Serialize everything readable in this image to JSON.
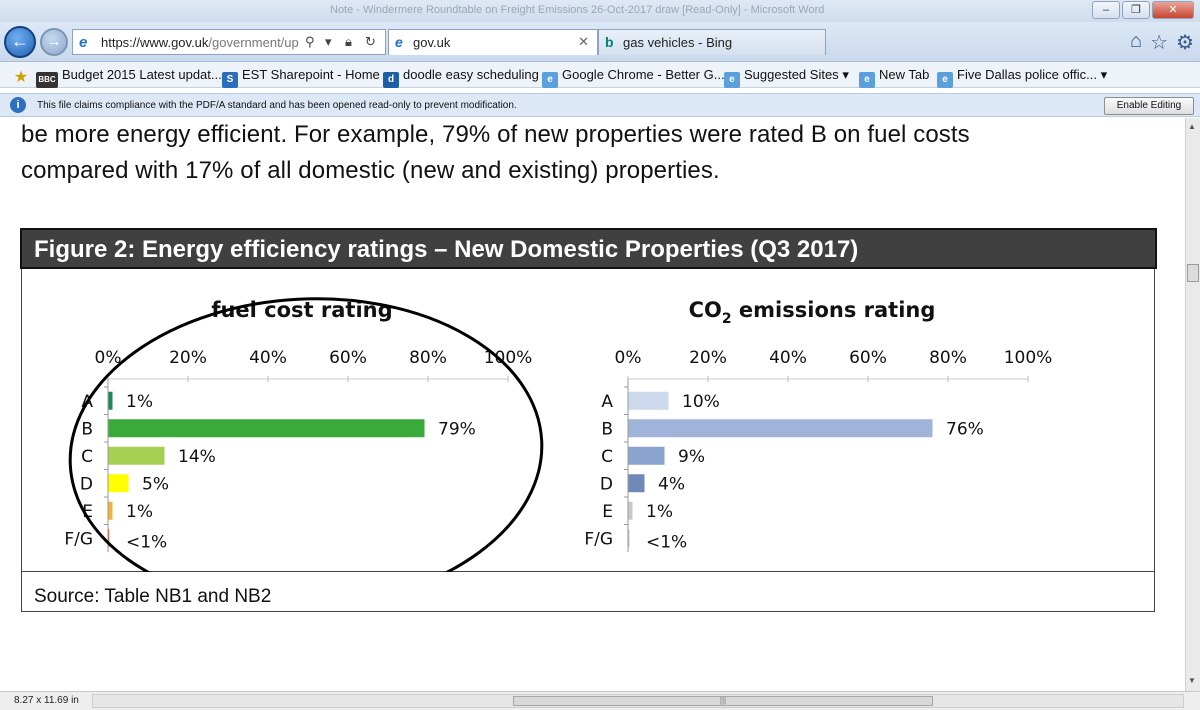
{
  "window": {
    "title": "Note - Windermere Roundtable on Freight Emissions 26-Oct-2017 draw [Read-Only] - Microsoft Word"
  },
  "browser": {
    "url_host": "https://www.gov.uk",
    "url_path": "/government/up",
    "tabs": [
      {
        "label": "gov.uk",
        "icon": "ie-icon",
        "active": true
      },
      {
        "label": "gas vehicles - Bing",
        "icon": "bing-icon",
        "active": false
      }
    ]
  },
  "favorites": [
    {
      "label": "Budget 2015 Latest updat...",
      "icon": "bbc-icon"
    },
    {
      "label": "EST Sharepoint - Home",
      "icon": "sharepoint-icon"
    },
    {
      "label": "doodle easy scheduling",
      "icon": "doodle-icon"
    },
    {
      "label": "Google Chrome - Better G...",
      "icon": "ie-page-icon"
    },
    {
      "label": "Suggested Sites",
      "icon": "ie-page-icon"
    },
    {
      "label": "New Tab",
      "icon": "ie-page-icon"
    },
    {
      "label": "Five Dallas police offic...",
      "icon": "ie-page-icon"
    }
  ],
  "infobar": {
    "message": "This file claims compliance with the PDF/A standard and has been opened read-only to prevent modification.",
    "button_label": "Enable Editing"
  },
  "document": {
    "line1": "be more energy efficient.  For example, 79% of new properties were rated B on fuel costs",
    "line2": "compared with 17% of all domestic (new and existing) properties.",
    "figure_title": "Figure 2: Energy efficiency ratings – New Domestic Properties (Q3 2017)",
    "source": "Source: Table NB1 and NB2"
  },
  "chart_data": [
    {
      "type": "bar",
      "title": "fuel cost rating",
      "categories": [
        "A",
        "B",
        "C",
        "D",
        "E",
        "F/G"
      ],
      "values": [
        1,
        79,
        14,
        5,
        1,
        0.2
      ],
      "data_labels": [
        "1%",
        "79%",
        "14%",
        "5%",
        "1%",
        "<1%"
      ],
      "colors": [
        "#1a8a5a",
        "#3aaa3a",
        "#a6d051",
        "#ffff00",
        "#f5b335",
        "#e06030"
      ],
      "x_ticks": [
        "0%",
        "20%",
        "40%",
        "60%",
        "80%",
        "100%"
      ],
      "xlim": [
        0,
        100
      ],
      "grid": false,
      "annotation": "hand-drawn ellipse around chart"
    },
    {
      "type": "bar",
      "title_main": "CO",
      "title_sub": "2",
      "title_rest": " emissions rating",
      "categories": [
        "A",
        "B",
        "C",
        "D",
        "E",
        "F/G"
      ],
      "values": [
        10,
        76,
        9,
        4,
        1,
        0.2
      ],
      "data_labels": [
        "10%",
        "76%",
        "9%",
        "4%",
        "1%",
        "<1%"
      ],
      "colors": [
        "#cdd9ec",
        "#9fb4d8",
        "#8aa3cf",
        "#6f89b8",
        "#c9c9c9",
        "#bbbbbb"
      ],
      "x_ticks": [
        "0%",
        "20%",
        "40%",
        "60%",
        "80%",
        "100%"
      ],
      "xlim": [
        0,
        100
      ],
      "grid": false
    }
  ],
  "status_bar": {
    "page_size": "8.27 x 11.69 in"
  }
}
